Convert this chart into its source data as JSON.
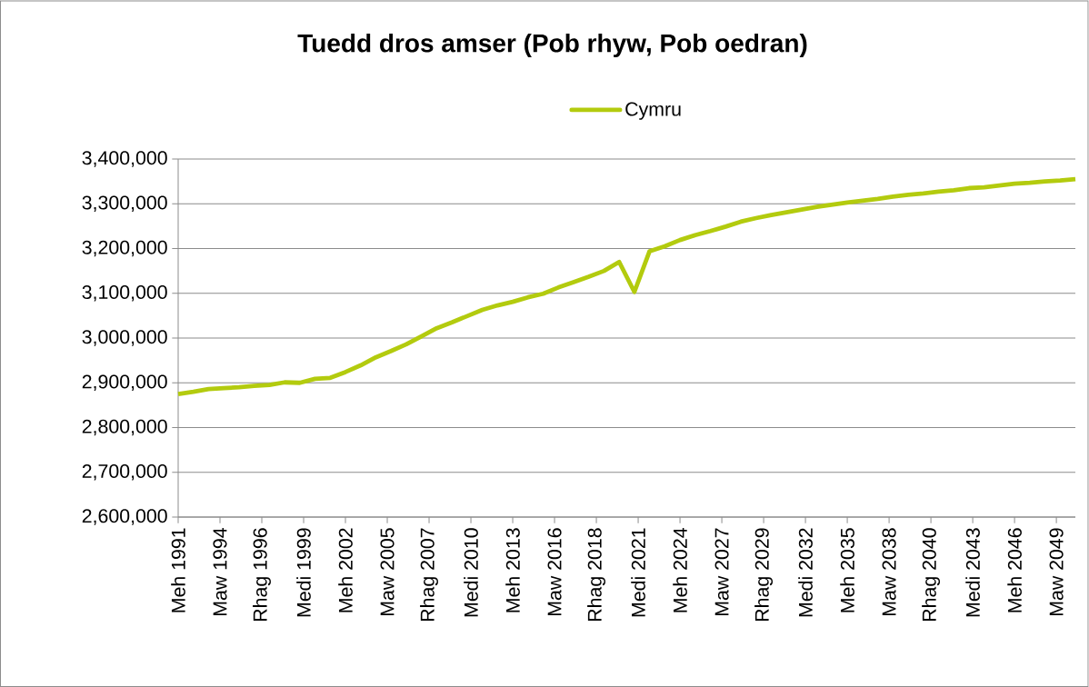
{
  "chart_data": {
    "type": "line",
    "title": "Tuedd dros amser (Pob rhyw, Pob oedran)",
    "x": [
      "1991-06",
      "1992-06",
      "1993-06",
      "1994-06",
      "1995-06",
      "1996-06",
      "1997-06",
      "1998-06",
      "1999-06",
      "2000-06",
      "2001-06",
      "2002-06",
      "2003-06",
      "2004-06",
      "2005-06",
      "2006-06",
      "2007-06",
      "2008-06",
      "2009-06",
      "2010-06",
      "2011-06",
      "2012-06",
      "2013-06",
      "2014-06",
      "2015-06",
      "2016-06",
      "2017-06",
      "2018-06",
      "2019-06",
      "2020-06",
      "2021-06",
      "2022-06",
      "2023-06",
      "2024-06",
      "2025-06",
      "2026-06",
      "2027-06",
      "2028-06",
      "2029-06",
      "2030-06",
      "2031-06",
      "2032-06",
      "2033-06",
      "2034-06",
      "2035-06",
      "2036-06",
      "2037-06",
      "2038-06",
      "2039-06",
      "2040-06",
      "2041-06",
      "2042-06",
      "2043-06",
      "2044-06",
      "2045-06",
      "2046-06",
      "2047-06",
      "2048-06",
      "2049-06",
      "2050-06"
    ],
    "series": [
      {
        "name": "Cymru",
        "color": "#b3cb0e",
        "values": [
          2875000,
          2880000,
          2886000,
          2888000,
          2890000,
          2893000,
          2895000,
          2901000,
          2900000,
          2909000,
          2911000,
          2924000,
          2939000,
          2957000,
          2971000,
          2986000,
          3004000,
          3022000,
          3035000,
          3049000,
          3063000,
          3073000,
          3081000,
          3091000,
          3099000,
          3113000,
          3125000,
          3137000,
          3150000,
          3170000,
          3103000,
          3194000,
          3205000,
          3219000,
          3230000,
          3239000,
          3249000,
          3260000,
          3268000,
          3275000,
          3281000,
          3287000,
          3293000,
          3298000,
          3303000,
          3307000,
          3311000,
          3316000,
          3320000,
          3323000,
          3327000,
          3330000,
          3335000,
          3337000,
          3341000,
          3345000,
          3347000,
          3350000,
          3352000,
          3355000
        ]
      }
    ],
    "xlim": [
      "1991-06",
      "2050-06"
    ],
    "xticks": [
      {
        "value": "1991-06",
        "label": "Meh 1991"
      },
      {
        "value": "1994-03",
        "label": "Maw 1994"
      },
      {
        "value": "1996-12",
        "label": "Rhag 1996"
      },
      {
        "value": "1999-09",
        "label": "Medi 1999"
      },
      {
        "value": "2002-06",
        "label": "Meh 2002"
      },
      {
        "value": "2005-03",
        "label": "Maw 2005"
      },
      {
        "value": "2007-12",
        "label": "Rhag 2007"
      },
      {
        "value": "2010-09",
        "label": "Medi 2010"
      },
      {
        "value": "2013-06",
        "label": "Meh 2013"
      },
      {
        "value": "2016-03",
        "label": "Maw 2016"
      },
      {
        "value": "2018-12",
        "label": "Rhag 2018"
      },
      {
        "value": "2021-09",
        "label": "Medi 2021"
      },
      {
        "value": "2024-06",
        "label": "Meh 2024"
      },
      {
        "value": "2027-03",
        "label": "Maw 2027"
      },
      {
        "value": "2029-12",
        "label": "Rhag 2029"
      },
      {
        "value": "2032-09",
        "label": "Medi 2032"
      },
      {
        "value": "2035-06",
        "label": "Meh 2035"
      },
      {
        "value": "2038-03",
        "label": "Maw 2038"
      },
      {
        "value": "2040-12",
        "label": "Rhag 2040"
      },
      {
        "value": "2043-09",
        "label": "Medi 2043"
      },
      {
        "value": "2046-06",
        "label": "Meh 2046"
      },
      {
        "value": "2049-03",
        "label": "Maw 2049"
      }
    ],
    "ylim": [
      2600000,
      3400000
    ],
    "yticks": [
      {
        "value": 2600000,
        "label": "2,600,000"
      },
      {
        "value": 2700000,
        "label": "2,700,000"
      },
      {
        "value": 2800000,
        "label": "2,800,000"
      },
      {
        "value": 2900000,
        "label": "2,900,000"
      },
      {
        "value": 3000000,
        "label": "3,000,000"
      },
      {
        "value": 3100000,
        "label": "3,100,000"
      },
      {
        "value": 3200000,
        "label": "3,200,000"
      },
      {
        "value": 3300000,
        "label": "3,300,000"
      },
      {
        "value": 3400000,
        "label": "3,400,000"
      }
    ],
    "grid": "y",
    "legend": "top"
  }
}
